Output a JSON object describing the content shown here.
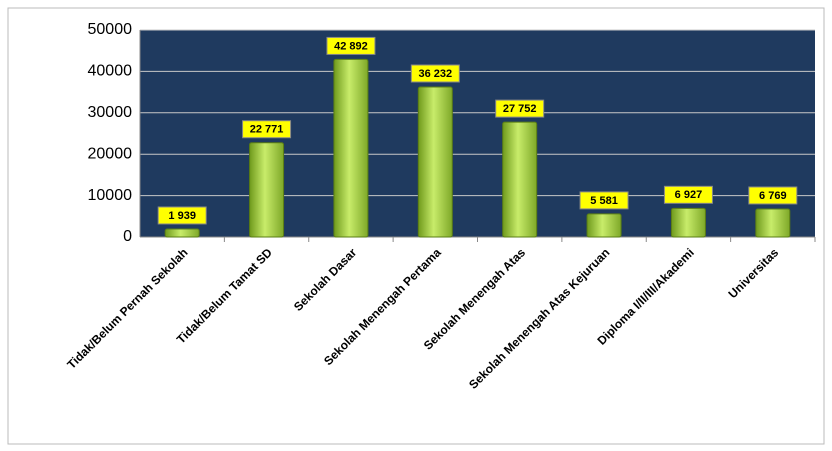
{
  "chart_data": {
    "type": "bar",
    "categories": [
      "Tidak/Belum Pernah Sekolah",
      "Tidak/Belum Tamat SD",
      "Sekolah Dasar",
      "Sekolah Menengah Pertama",
      "Sekolah Menengah Atas",
      "Sekolah Menengah Atas Kejuruan",
      "Diploma I/II/III/Akademi",
      "Universitas"
    ],
    "values": [
      1939,
      22771,
      42892,
      36232,
      27752,
      5581,
      6927,
      6769
    ],
    "value_labels": [
      "1 939",
      "22 771",
      "42 892",
      "36 232",
      "27 752",
      "5 581",
      "6 927",
      "6 769"
    ],
    "color": "#9acd32",
    "ylim": [
      0,
      50000
    ],
    "yticks": [
      0,
      10000,
      20000,
      30000,
      40000,
      50000
    ],
    "grid": true
  }
}
